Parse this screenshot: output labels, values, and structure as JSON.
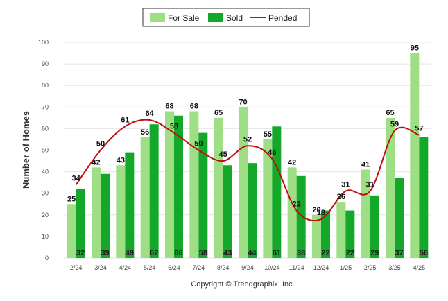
{
  "legend": {
    "for_sale": "For Sale",
    "sold": "Sold",
    "pended": "Pended"
  },
  "credit": "Copyright © Trendgraphix, Inc.",
  "colors": {
    "for_sale": "#9ede84",
    "sold": "#13a82a",
    "pended": "#bf0d0d",
    "grid": "#e4e4e4"
  },
  "chart_data": {
    "type": "bar",
    "title": "",
    "xlabel": "",
    "ylabel": "Number of Homes",
    "ylim": [
      0,
      100
    ],
    "yticks": [
      0,
      10,
      20,
      30,
      40,
      50,
      60,
      70,
      80,
      90,
      100
    ],
    "grid": true,
    "legend_position": "top-center",
    "categories": [
      "2/24",
      "3/24",
      "4/24",
      "5/24",
      "6/24",
      "7/24",
      "8/24",
      "9/24",
      "10/24",
      "11/24",
      "12/24",
      "1/25",
      "2/25",
      "3/25",
      "4/25"
    ],
    "series": [
      {
        "name": "For Sale",
        "type": "bar",
        "values": [
          25,
          42,
          43,
          56,
          68,
          68,
          65,
          70,
          55,
          42,
          20,
          26,
          41,
          65,
          95
        ]
      },
      {
        "name": "Sold",
        "type": "bar",
        "values": [
          32,
          39,
          49,
          62,
          66,
          58,
          43,
          44,
          61,
          38,
          22,
          22,
          29,
          37,
          56
        ]
      },
      {
        "name": "Pended",
        "type": "line",
        "values": [
          34,
          50,
          61,
          64,
          58,
          50,
          45,
          52,
          46,
          22,
          18,
          31,
          31,
          59,
          57
        ]
      }
    ]
  }
}
